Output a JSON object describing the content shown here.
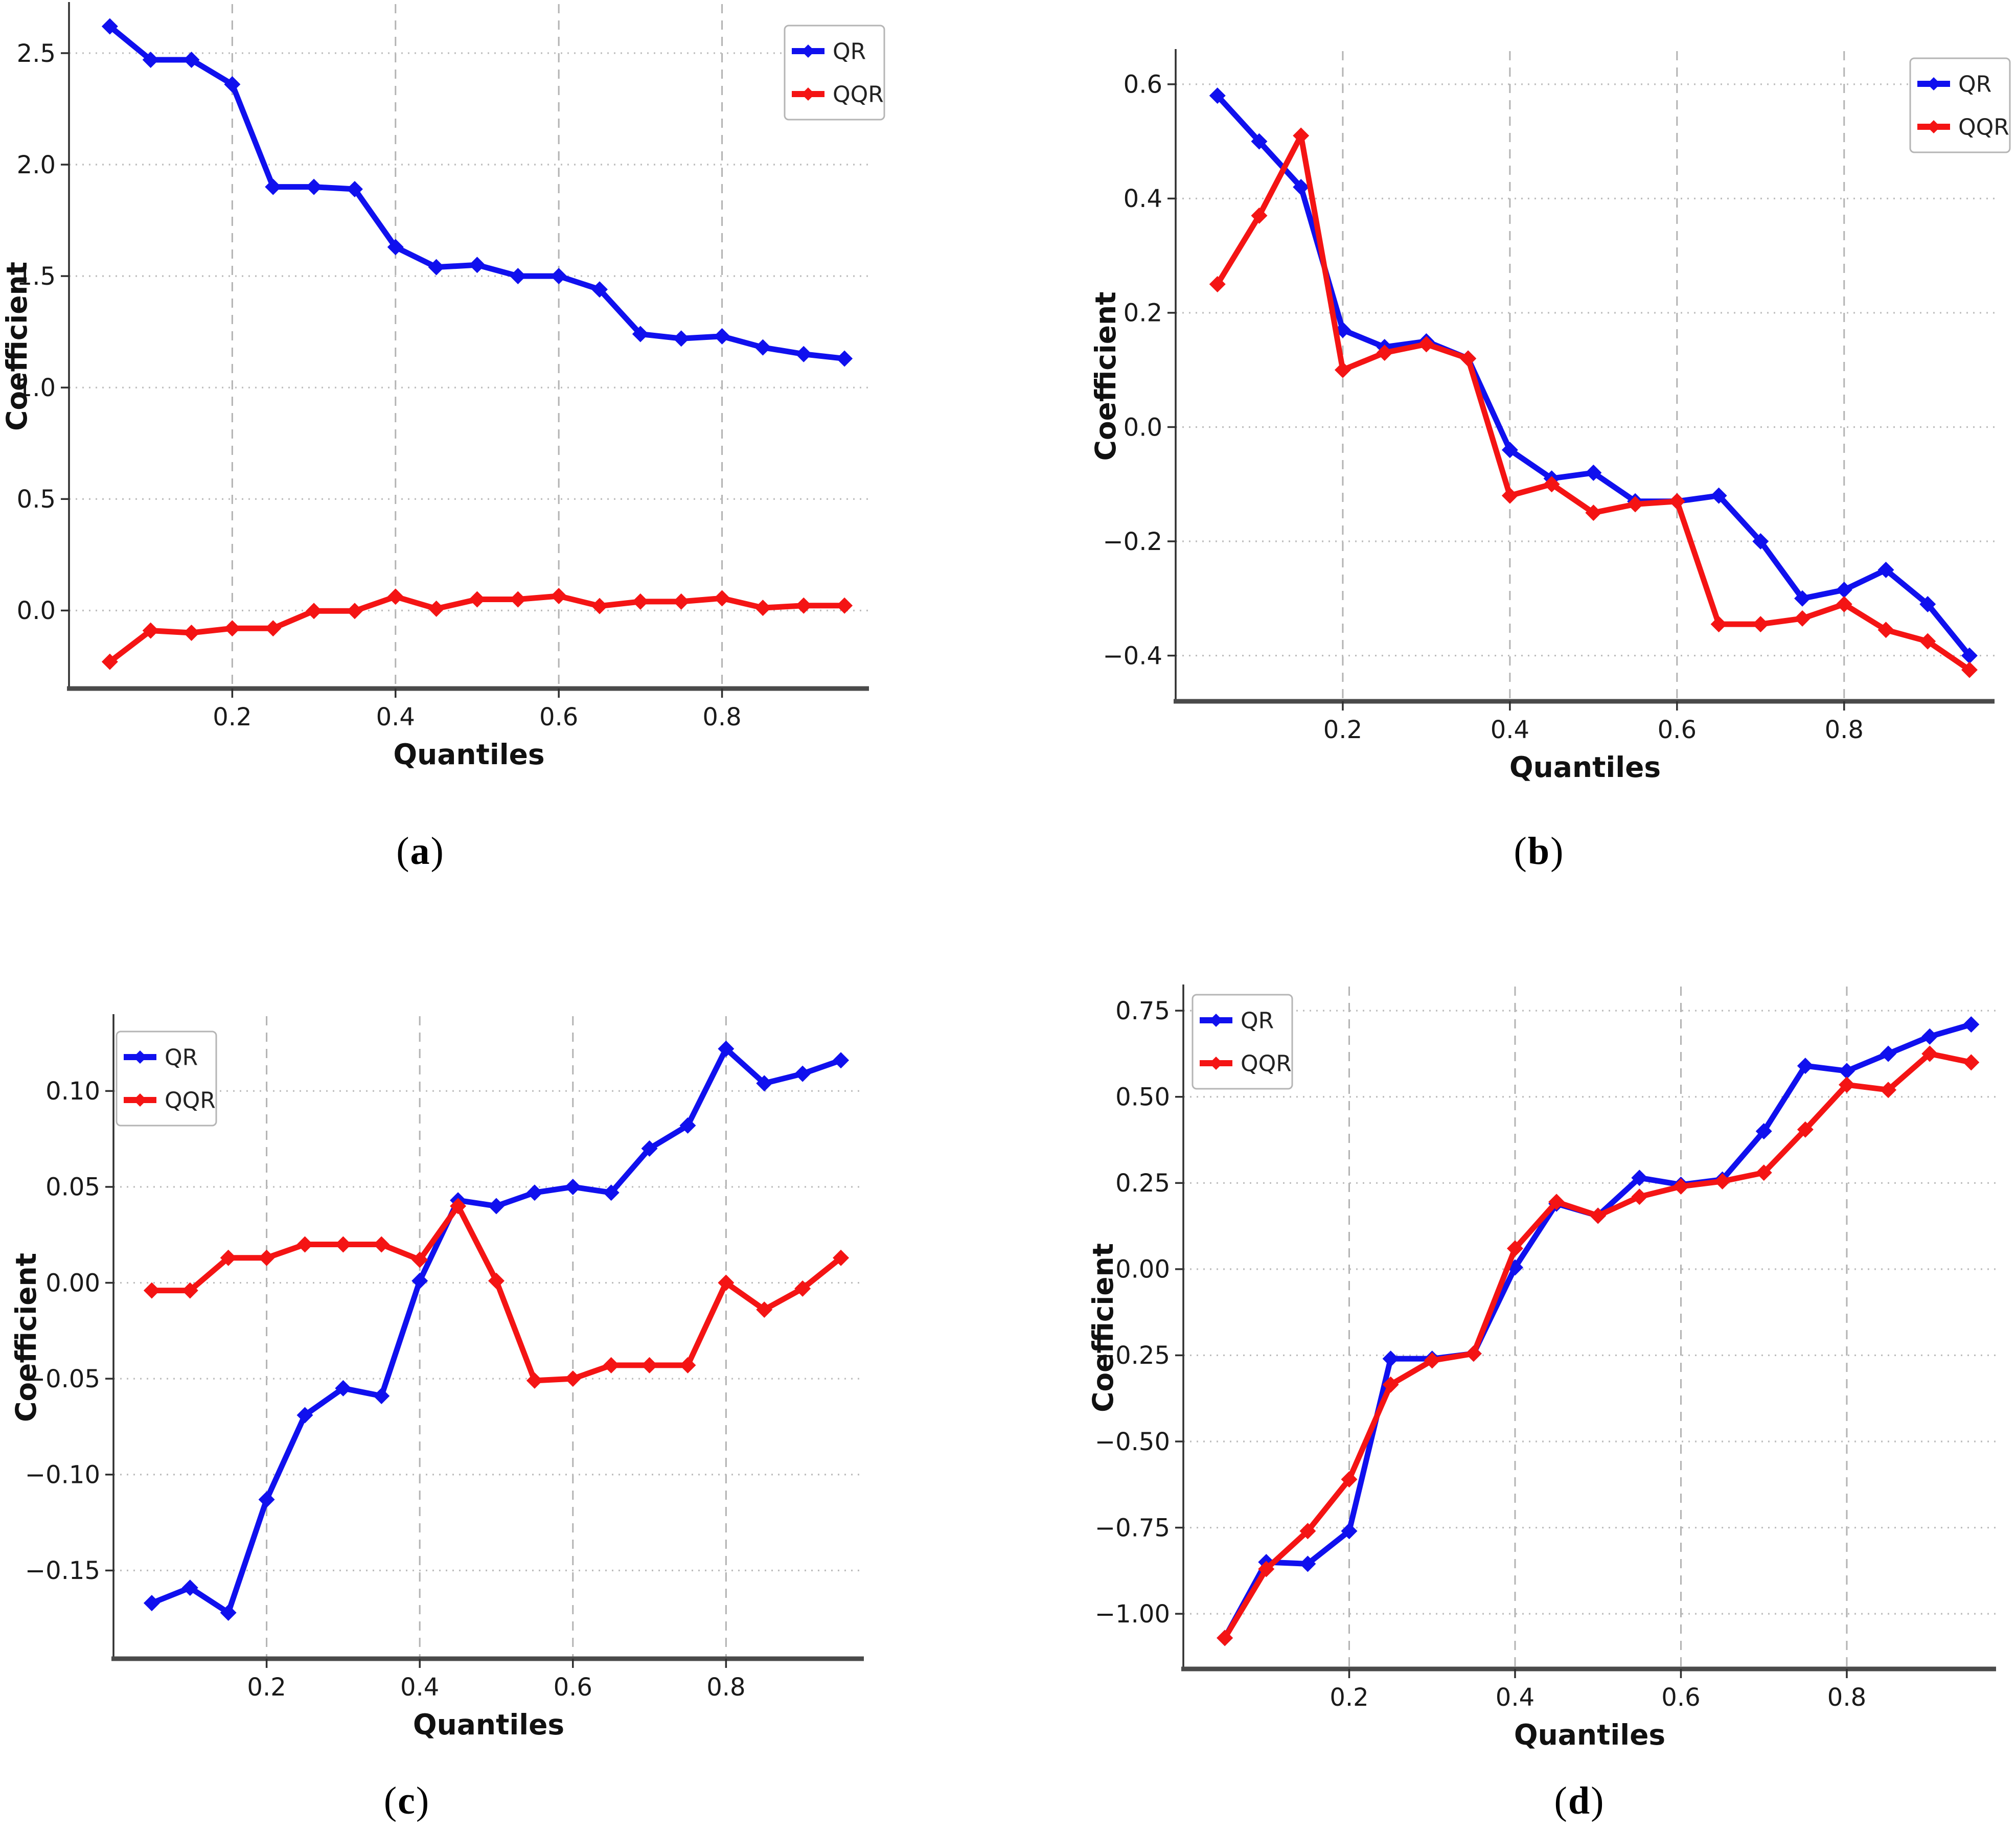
{
  "figure": {
    "captions": [
      {
        "pre": "(",
        "letter": "a",
        "post": ")"
      },
      {
        "pre": "(",
        "letter": "b",
        "post": ")"
      },
      {
        "pre": "(",
        "letter": "c",
        "post": ")"
      },
      {
        "pre": "(",
        "letter": "d",
        "post": ")"
      }
    ],
    "colors": {
      "qr_blue": "#1010ee",
      "qqr_red": "#f41414",
      "axis_left": "#2f2f2f",
      "axis_bottom": "#4a4a4a",
      "grid_horizontal": "#bdbdbd",
      "grid_vertical": "#b3b3b3",
      "tick_label": "#1a1a1a",
      "legend_border": "#b5b5b5",
      "legend_bg": "#ffffff",
      "legend_text": "#222222"
    }
  },
  "chart_data": [
    {
      "panel": "a",
      "type": "line",
      "title": "",
      "xlabel": "Quantiles",
      "ylabel": "Coefficient",
      "legend_position": "top-right",
      "grid": true,
      "x": [
        0.05,
        0.1,
        0.15,
        0.2,
        0.25,
        0.3,
        0.35,
        0.4,
        0.45,
        0.5,
        0.55,
        0.6,
        0.65,
        0.7,
        0.75,
        0.8,
        0.85,
        0.9,
        0.95
      ],
      "series": [
        {
          "name": "QR",
          "color_key": "qr_blue",
          "values": [
            2.62,
            2.47,
            2.47,
            2.36,
            1.9,
            1.9,
            1.89,
            1.63,
            1.54,
            1.55,
            1.5,
            1.5,
            1.44,
            1.24,
            1.22,
            1.23,
            1.18,
            1.15,
            1.13
          ]
        },
        {
          "name": "QQR",
          "color_key": "qqr_red",
          "values": [
            -0.23,
            -0.09,
            -0.1,
            -0.08,
            -0.08,
            -0.002,
            -0.002,
            0.062,
            0.008,
            0.05,
            0.05,
            0.065,
            0.02,
            0.04,
            0.04,
            0.055,
            0.012,
            0.022,
            0.022
          ]
        }
      ],
      "xticks": [
        0.2,
        0.4,
        0.6,
        0.8
      ],
      "xtick_labels": [
        "0.2",
        "0.4",
        "0.6",
        "0.8"
      ],
      "yticks": [
        0.0,
        0.5,
        1.0,
        1.5,
        2.0,
        2.5
      ],
      "ytick_labels": [
        "0.0",
        "0.5",
        "1.0",
        "1.5",
        "2.0",
        "2.5"
      ],
      "ylim": [
        -0.35,
        2.72
      ],
      "xlim": [
        0.0,
        0.98
      ]
    },
    {
      "panel": "b",
      "type": "line",
      "title": "",
      "xlabel": "Quantiles",
      "ylabel": "Coefficient",
      "legend_position": "top-right",
      "grid": true,
      "x": [
        0.05,
        0.1,
        0.15,
        0.2,
        0.25,
        0.3,
        0.35,
        0.4,
        0.45,
        0.5,
        0.55,
        0.6,
        0.65,
        0.7,
        0.75,
        0.8,
        0.85,
        0.9,
        0.95
      ],
      "series": [
        {
          "name": "QR",
          "color_key": "qr_blue",
          "values": [
            0.58,
            0.5,
            0.42,
            0.17,
            0.14,
            0.15,
            0.12,
            -0.04,
            -0.09,
            -0.08,
            -0.13,
            -0.13,
            -0.12,
            -0.2,
            -0.3,
            -0.285,
            -0.25,
            -0.31,
            -0.4
          ]
        },
        {
          "name": "QQR",
          "color_key": "qqr_red",
          "values": [
            0.25,
            0.37,
            0.51,
            0.1,
            0.13,
            0.145,
            0.12,
            -0.12,
            -0.1,
            -0.15,
            -0.135,
            -0.13,
            -0.345,
            -0.345,
            -0.335,
            -0.31,
            -0.355,
            -0.375,
            -0.425
          ]
        }
      ],
      "xticks": [
        0.2,
        0.4,
        0.6,
        0.8
      ],
      "xtick_labels": [
        "0.2",
        "0.4",
        "0.6",
        "0.8"
      ],
      "yticks": [
        -0.4,
        -0.2,
        0.0,
        0.2,
        0.4,
        0.6
      ],
      "ytick_labels": [
        "−0.4",
        "−0.2",
        "0.0",
        "0.2",
        "0.4",
        "0.6"
      ],
      "ylim": [
        -0.48,
        0.658
      ],
      "xlim": [
        0.0,
        0.98
      ]
    },
    {
      "panel": "c",
      "type": "line",
      "title": "",
      "xlabel": "Quantiles",
      "ylabel": "Coefficient",
      "legend_position": "top-left",
      "grid": true,
      "x": [
        0.05,
        0.1,
        0.15,
        0.2,
        0.25,
        0.3,
        0.35,
        0.4,
        0.45,
        0.5,
        0.55,
        0.6,
        0.65,
        0.7,
        0.75,
        0.8,
        0.85,
        0.9,
        0.95
      ],
      "series": [
        {
          "name": "QR",
          "color_key": "qr_blue",
          "values": [
            -0.167,
            -0.159,
            -0.172,
            -0.113,
            -0.069,
            -0.055,
            -0.059,
            0.001,
            0.043,
            0.04,
            0.047,
            0.05,
            0.047,
            0.07,
            0.082,
            0.122,
            0.104,
            0.109,
            0.116
          ]
        },
        {
          "name": "QQR",
          "color_key": "qqr_red",
          "values": [
            -0.004,
            -0.004,
            0.013,
            0.013,
            0.02,
            0.02,
            0.02,
            0.012,
            0.04,
            0.001,
            -0.051,
            -0.05,
            -0.043,
            -0.043,
            -0.043,
            0.0,
            -0.014,
            -0.003,
            0.013
          ]
        }
      ],
      "xticks": [
        0.2,
        0.4,
        0.6,
        0.8
      ],
      "xtick_labels": [
        "0.2",
        "0.4",
        "0.6",
        "0.8"
      ],
      "yticks": [
        -0.15,
        -0.1,
        -0.05,
        0.0,
        0.05,
        0.1
      ],
      "ytick_labels": [
        "−0.15",
        "−0.10",
        "−0.05",
        "0.00",
        "0.05",
        "0.10"
      ],
      "ylim": [
        -0.196,
        0.139
      ],
      "xlim": [
        0.0,
        0.98
      ]
    },
    {
      "panel": "d",
      "type": "line",
      "title": "",
      "xlabel": "Quantiles",
      "ylabel": "Coefficient",
      "legend_position": "top-left",
      "grid": true,
      "x": [
        0.05,
        0.1,
        0.15,
        0.2,
        0.25,
        0.3,
        0.35,
        0.4,
        0.45,
        0.5,
        0.55,
        0.6,
        0.65,
        0.7,
        0.75,
        0.8,
        0.85,
        0.9,
        0.95
      ],
      "series": [
        {
          "name": "QR",
          "color_key": "qr_blue",
          "values": [
            -1.07,
            -0.85,
            -0.855,
            -0.76,
            -0.26,
            -0.26,
            -0.245,
            0.005,
            0.19,
            0.155,
            0.265,
            0.245,
            0.26,
            0.4,
            0.59,
            0.575,
            0.625,
            0.675,
            0.71
          ]
        },
        {
          "name": "QQR",
          "color_key": "qqr_red",
          "values": [
            -1.07,
            -0.87,
            -0.76,
            -0.61,
            -0.335,
            -0.265,
            -0.245,
            0.06,
            0.195,
            0.155,
            0.21,
            0.24,
            0.255,
            0.28,
            0.405,
            0.535,
            0.52,
            0.625,
            0.6
          ]
        }
      ],
      "xticks": [
        0.2,
        0.4,
        0.6,
        0.8
      ],
      "xtick_labels": [
        "0.2",
        "0.4",
        "0.6",
        "0.8"
      ],
      "yticks": [
        -1.0,
        -0.75,
        -0.5,
        -0.25,
        0.0,
        0.25,
        0.5,
        0.75
      ],
      "ytick_labels": [
        "−1.00",
        "−0.75",
        "−0.50",
        "−0.25",
        "0.00",
        "0.25",
        "0.50",
        "0.75"
      ],
      "ylim": [
        -1.16,
        0.82
      ],
      "xlim": [
        0.0,
        0.98
      ]
    }
  ]
}
